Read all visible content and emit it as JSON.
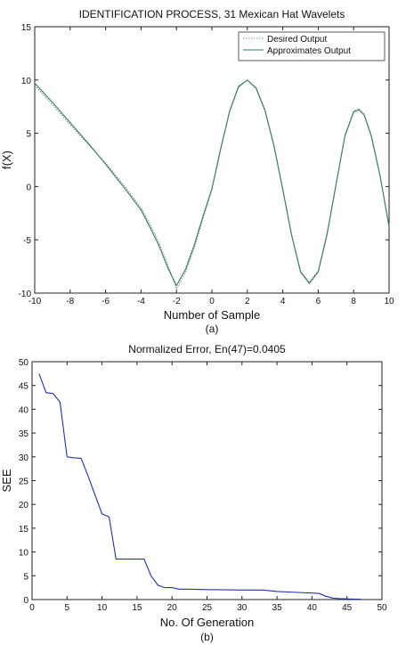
{
  "chart_data": [
    {
      "type": "line",
      "title": "IDENTIFICATION PROCESS, 31 Mexican Hat Wavelets",
      "xlabel": "Number of Sample",
      "ylabel": "f(X)",
      "caption": "(a)",
      "xlim": [
        -10,
        10
      ],
      "ylim": [
        -10,
        15
      ],
      "xticks": [
        -10,
        -8,
        -6,
        -4,
        -2,
        0,
        2,
        4,
        6,
        8,
        10
      ],
      "yticks": [
        -10,
        -5,
        0,
        5,
        10,
        15
      ],
      "grid": false,
      "legend_position": "top-right",
      "series": [
        {
          "name": "Desired Output",
          "style": "dotted",
          "color": "#6f8fb0",
          "x": [
            -10,
            -9,
            -8,
            -7,
            -6,
            -5,
            -4,
            -3.5,
            -3,
            -2.5,
            -2,
            -1.5,
            -1,
            -0.5,
            0,
            0.5,
            1,
            1.5,
            2,
            2.5,
            3,
            3.5,
            4,
            4.5,
            5,
            5.5,
            6,
            6.5,
            7,
            7.5,
            8,
            8.3,
            8.6,
            9,
            9.5,
            10
          ],
          "y": [
            9.5,
            7.7,
            5.8,
            4.0,
            2.2,
            0.2,
            -2.0,
            -3.5,
            -5.2,
            -7.3,
            -9.6,
            -8.1,
            -5.8,
            -3.0,
            -0.3,
            3.5,
            7.0,
            9.3,
            10.0,
            9.3,
            7.2,
            3.9,
            -0.2,
            -4.5,
            -7.9,
            -9.0,
            -7.9,
            -4.4,
            0.2,
            4.8,
            7.1,
            7.3,
            6.8,
            4.8,
            1.0,
            -3.7
          ]
        },
        {
          "name": "Approximates Output",
          "style": "solid",
          "color": "#3a7a5a",
          "x": [
            -10,
            -9,
            -8,
            -7,
            -6,
            -5,
            -4,
            -3.5,
            -3,
            -2.5,
            -2,
            -1.5,
            -1,
            -0.5,
            0,
            0.5,
            1,
            1.5,
            2,
            2.5,
            3,
            3.5,
            4,
            4.5,
            5,
            5.5,
            6,
            6.5,
            7,
            7.5,
            8,
            8.3,
            8.6,
            9,
            9.5,
            10
          ],
          "y": [
            9.7,
            7.9,
            6.0,
            4.1,
            2.1,
            0.0,
            -2.2,
            -3.8,
            -5.5,
            -7.6,
            -9.3,
            -7.8,
            -5.5,
            -2.8,
            -0.2,
            3.6,
            7.1,
            9.4,
            10.0,
            9.2,
            7.1,
            3.8,
            -0.3,
            -4.6,
            -8.0,
            -9.1,
            -8.0,
            -4.5,
            0.1,
            4.7,
            7.0,
            7.2,
            6.7,
            4.7,
            0.9,
            -3.8
          ]
        }
      ]
    },
    {
      "type": "line",
      "title": "Normalized Error, En(47)=0.0405",
      "xlabel": "No. Of Generation",
      "ylabel": "SEE",
      "caption": "(b)",
      "xlim": [
        0,
        50
      ],
      "ylim": [
        0,
        50
      ],
      "xticks": [
        0,
        5,
        10,
        15,
        20,
        25,
        30,
        35,
        40,
        45,
        50
      ],
      "yticks": [
        0,
        5,
        10,
        15,
        20,
        25,
        30,
        35,
        40,
        45,
        50
      ],
      "grid": false,
      "series": [
        {
          "color": "#2233aa",
          "x": [
            1,
            2,
            3,
            4,
            5,
            6,
            7,
            8,
            9,
            10,
            11,
            12,
            13,
            14,
            15,
            16,
            17,
            18,
            19,
            20,
            21,
            22,
            25,
            30,
            33,
            35,
            38,
            41,
            42,
            43,
            44,
            45,
            46,
            47
          ],
          "y": [
            47.5,
            43.5,
            43.3,
            41.5,
            30.0,
            29.8,
            29.7,
            26.0,
            22.0,
            18.0,
            17.4,
            8.5,
            8.5,
            8.5,
            8.5,
            8.5,
            5.0,
            3.0,
            2.5,
            2.5,
            2.2,
            2.2,
            2.1,
            2.0,
            2.0,
            1.7,
            1.5,
            1.3,
            0.7,
            0.3,
            0.2,
            0.15,
            0.1,
            0.08
          ]
        }
      ]
    }
  ]
}
